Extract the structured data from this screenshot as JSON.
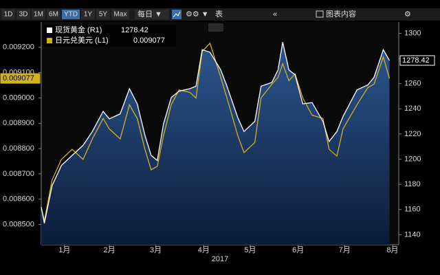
{
  "toolbar": {
    "ranges": [
      "1D",
      "3D",
      "1M",
      "6M",
      "YTD",
      "1Y",
      "5Y",
      "Max"
    ],
    "frequency": "每日 ▼",
    "table": "表",
    "contents": "图表内容"
  },
  "chart_data": {
    "type": "line",
    "xlabel": "2017",
    "x": [
      1,
      3,
      8,
      14,
      21,
      28,
      34,
      41,
      45,
      52,
      58,
      63,
      68,
      72,
      76,
      80,
      85,
      90,
      97,
      101,
      105,
      110,
      117,
      121,
      128,
      132,
      139,
      143,
      150,
      154,
      157,
      161,
      165,
      170,
      176,
      183,
      187,
      192,
      196,
      205,
      212,
      216,
      222,
      226
    ],
    "xlim": [
      1,
      232
    ],
    "xticks": [
      {
        "value": 16,
        "label": "1月"
      },
      {
        "value": 45,
        "label": "2月"
      },
      {
        "value": 75,
        "label": "3月"
      },
      {
        "value": 106,
        "label": "4月"
      },
      {
        "value": 136,
        "label": "5月"
      },
      {
        "value": 167,
        "label": "6月"
      },
      {
        "value": 197,
        "label": "7月"
      },
      {
        "value": 228,
        "label": "8月"
      }
    ],
    "ylim": [
      0.00842,
      0.0093
    ],
    "yticks": [
      {
        "value": 0.0085,
        "label": "0.008500"
      },
      {
        "value": 0.0086,
        "label": "0.008600"
      },
      {
        "value": 0.0087,
        "label": "0.008700"
      },
      {
        "value": 0.0088,
        "label": "0.008800"
      },
      {
        "value": 0.0089,
        "label": "0.008900"
      },
      {
        "value": 0.009,
        "label": "0.009000"
      },
      {
        "value": 0.0091,
        "label": "0.009100"
      },
      {
        "value": 0.0092,
        "label": "0.009200"
      }
    ],
    "y2lim": [
      1132,
      1309
    ],
    "y2ticks": [
      1140,
      1160,
      1180,
      1200,
      1220,
      1240,
      1260,
      1280,
      1300
    ],
    "series": [
      {
        "name": "现货黄金 (R1)",
        "color": "#ffffff",
        "axis": "y2",
        "last_label": "1278.42",
        "values": [
          1162,
          1149,
          1179,
          1195,
          1203,
          1211,
          1222,
          1238,
          1232,
          1236,
          1256,
          1244,
          1219,
          1203,
          1199,
          1228,
          1249,
          1254,
          1256,
          1258,
          1287,
          1285,
          1271,
          1258,
          1233,
          1222,
          1230,
          1258,
          1261,
          1271,
          1293,
          1271,
          1267,
          1244,
          1245,
          1230,
          1214,
          1222,
          1234,
          1255,
          1259,
          1265,
          1287,
          1278.42
        ]
      },
      {
        "name": "日元兑美元 (L1)",
        "color": "#d4b21c",
        "axis": "y",
        "last_label": "0.009077",
        "values": [
          0.008568,
          0.008514,
          0.008676,
          0.008757,
          0.008797,
          0.008757,
          0.008838,
          0.008919,
          0.008878,
          0.008838,
          0.008973,
          0.008919,
          0.008797,
          0.008716,
          0.00873,
          0.008851,
          0.008973,
          0.009032,
          0.009022,
          0.009,
          0.009184,
          0.009216,
          0.009081,
          0.009,
          0.008851,
          0.008784,
          0.008824,
          0.009,
          0.009054,
          0.009081,
          0.009135,
          0.009068,
          0.009095,
          0.009,
          0.008932,
          0.008919,
          0.008797,
          0.00877,
          0.008878,
          0.008973,
          0.009041,
          0.009054,
          0.009162,
          0.009077
        ]
      }
    ]
  }
}
